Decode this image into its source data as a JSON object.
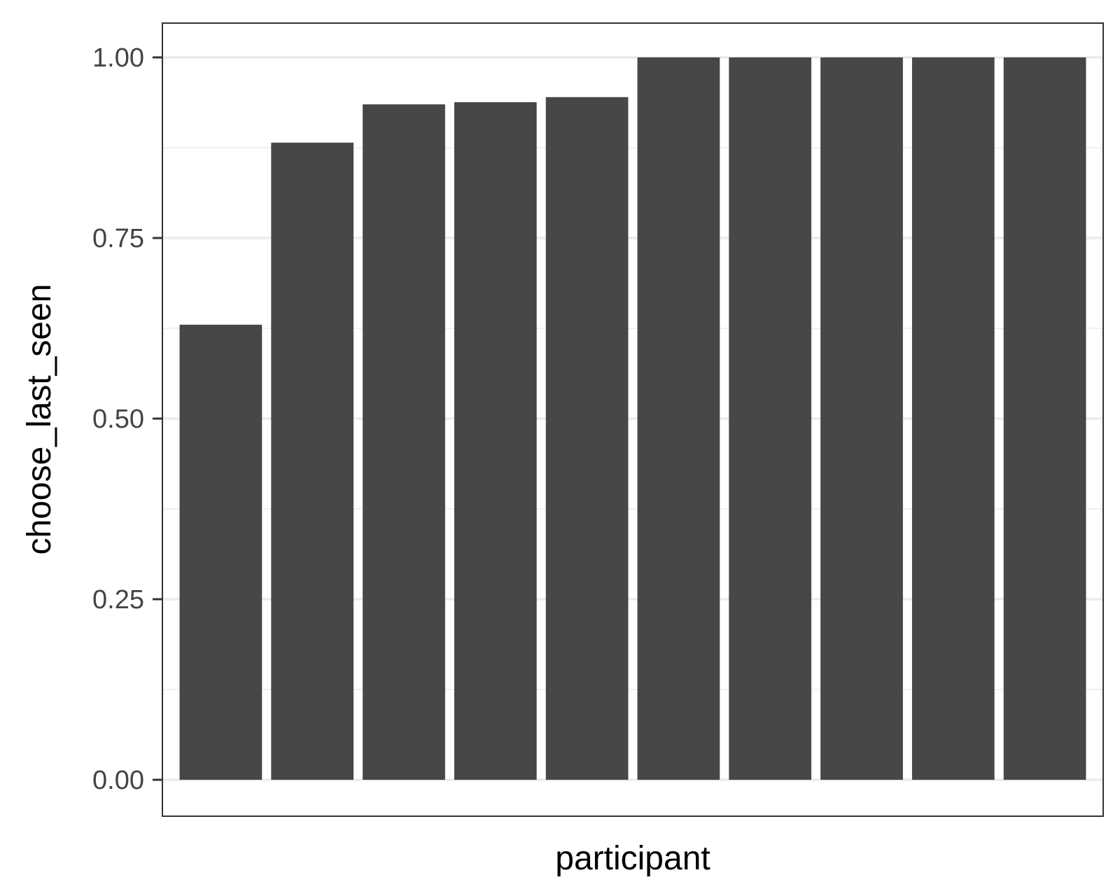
{
  "chart_data": {
    "type": "bar",
    "title": "",
    "xlabel": "participant",
    "ylabel": "choose_last_seen",
    "ylim": [
      -0.05,
      1.05
    ],
    "yticks": [
      "0.00",
      "0.25",
      "0.50",
      "0.75",
      "1.00"
    ],
    "ytick_values": [
      0,
      0.25,
      0.5,
      0.75,
      1.0
    ],
    "minor_gridlines": [
      0.125,
      0.375,
      0.625,
      0.875
    ],
    "grid": true,
    "legend": "none",
    "bar_color": "#474747",
    "values": [
      0.63,
      0.882,
      0.935,
      0.938,
      0.945,
      1.0,
      1.0,
      1.0,
      1.0,
      1.0
    ]
  }
}
